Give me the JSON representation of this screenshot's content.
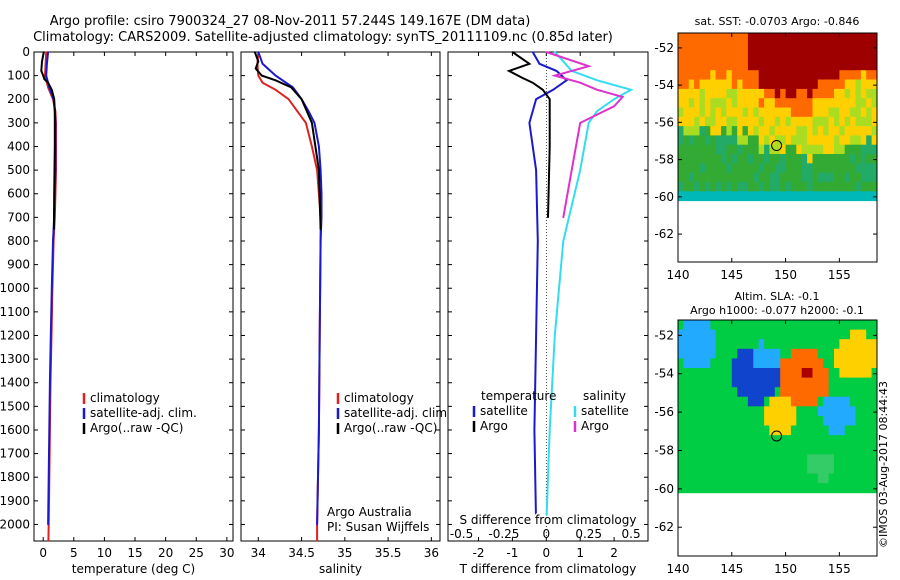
{
  "header": {
    "title": "Argo profile: csiro 7900324_27 08-Nov-2011 57.244S 149.167E (DM data)",
    "subtitle": "Climatology: CARS2009. Satellite-adjusted climatology: synTS_20111109.nc (0.85d later)"
  },
  "colors": {
    "climatology": "#dd2222",
    "satellite": "#1a1acc",
    "argo": "#000000",
    "salinity_satellite": "#33ddee",
    "salinity_argo": "#dd33cc"
  },
  "chart_data": [
    {
      "type": "line",
      "xlabel": "temperature (deg C)",
      "ylabel": "",
      "xlim": [
        -1.5,
        31
      ],
      "ylim": [
        2070,
        0
      ],
      "xticks": [
        0,
        5,
        10,
        15,
        20,
        25,
        30
      ],
      "yticks": [
        0,
        100,
        200,
        300,
        400,
        500,
        600,
        700,
        800,
        900,
        1000,
        1100,
        1200,
        1300,
        1400,
        1500,
        1600,
        1700,
        1800,
        1900,
        2000
      ],
      "legend": [
        "climatology",
        "satellite-adj. clim.",
        "Argo(..raw -QC)"
      ],
      "legend_position": "lower-right",
      "series": [
        {
          "name": "climatology",
          "color": "#dd2222",
          "x": [
            0.5,
            0.4,
            0.3,
            0.8,
            1.6,
            2.0,
            2.1,
            2.1,
            2.1,
            2.0,
            1.9,
            1.7,
            1.5,
            1.35,
            1.2,
            1.1,
            1.0,
            0.95,
            0.9,
            0.85
          ],
          "y": [
            0,
            50,
            100,
            150,
            200,
            250,
            300,
            400,
            500,
            600,
            700,
            800,
            1000,
            1200,
            1400,
            1600,
            1800,
            1900,
            2000,
            2070
          ]
        },
        {
          "name": "satellite-adj. clim.",
          "color": "#1a1acc",
          "x": [
            0.8,
            0.6,
            0.5,
            1.0,
            1.7,
            1.9,
            2.0,
            2.0,
            2.0,
            1.9,
            1.8,
            1.6,
            1.4,
            1.25,
            1.1,
            1.0,
            0.9,
            0.85,
            0.8
          ],
          "y": [
            0,
            50,
            100,
            150,
            200,
            250,
            300,
            400,
            500,
            600,
            700,
            800,
            1000,
            1200,
            1400,
            1600,
            1800,
            1900,
            2000
          ]
        },
        {
          "name": "Argo(..raw -QC)",
          "color": "#000000",
          "x": [
            0.1,
            -0.2,
            -0.3,
            0.0,
            0.2,
            0.8,
            1.4,
            1.8,
            1.9,
            1.9,
            1.9,
            1.8,
            1.75
          ],
          "y": [
            0,
            40,
            80,
            100,
            115,
            130,
            160,
            200,
            250,
            300,
            400,
            600,
            750
          ]
        }
      ]
    },
    {
      "type": "line",
      "xlabel": "salinity",
      "ylabel": "",
      "xlim": [
        33.8,
        36.1
      ],
      "ylim": [
        2070,
        0
      ],
      "xticks": [
        34,
        34.5,
        35,
        35.5,
        36
      ],
      "xtick_labels": [
        "34",
        "34.5",
        "35",
        "35.5",
        "36"
      ],
      "legend": [
        "climatology",
        "satellite-adj. clim.",
        "Argo(..raw -QC)"
      ],
      "legend_position": "lower-right",
      "annotations": [
        "Argo Australia",
        "PI: Susan Wijffels"
      ],
      "series": [
        {
          "name": "climatology",
          "color": "#dd2222",
          "x": [
            34.0,
            33.99,
            34.0,
            34.05,
            34.2,
            34.35,
            34.45,
            34.55,
            34.62,
            34.68,
            34.7,
            34.72,
            34.72,
            34.71,
            34.7,
            34.69,
            34.68,
            34.68
          ],
          "y": [
            0,
            50,
            100,
            130,
            160,
            200,
            250,
            300,
            400,
            500,
            600,
            700,
            800,
            1200,
            1600,
            1800,
            2000,
            2070
          ]
        },
        {
          "name": "satellite-adj. clim.",
          "color": "#1a1acc",
          "x": [
            34.0,
            34.05,
            34.2,
            34.4,
            34.5,
            34.58,
            34.65,
            34.7,
            34.72,
            34.73,
            34.73,
            34.72,
            34.71,
            34.7,
            34.69,
            34.68
          ],
          "y": [
            0,
            50,
            100,
            150,
            200,
            250,
            300,
            400,
            500,
            600,
            700,
            800,
            1200,
            1600,
            1800,
            2000
          ]
        },
        {
          "name": "Argo(..raw -QC)",
          "color": "#000000",
          "x": [
            33.96,
            34.0,
            33.97,
            34.04,
            34.2,
            34.38,
            34.5,
            34.62,
            34.7,
            34.72
          ],
          "y": [
            0,
            40,
            70,
            100,
            120,
            150,
            200,
            300,
            500,
            750
          ]
        }
      ]
    },
    {
      "type": "line",
      "xlabel": "T difference from climatology",
      "x2label": "S difference from climatology",
      "ylabel": "",
      "xlim": [
        -2.9,
        3.0
      ],
      "ylim": [
        2070,
        0
      ],
      "xticks": [
        -2,
        -1,
        0,
        1,
        2
      ],
      "x2ticks": [
        -0.5,
        -0.25,
        0,
        0.25,
        0.5
      ],
      "x2tick_labels": [
        "-0.5",
        "-0.25",
        "0",
        "0.25",
        "0.5"
      ],
      "legend": [
        "satellite",
        "Argo",
        "satellite",
        "Argo"
      ],
      "legend_position": "lower",
      "legend_headers": [
        "temperature",
        "salinity"
      ],
      "series": [
        {
          "name": "satellite",
          "color": "#1a1acc",
          "x": [
            -0.4,
            -0.2,
            0.3,
            0.6,
            0.2,
            -0.3,
            -0.5,
            -0.3,
            -0.25,
            -0.3,
            -0.35,
            -0.3
          ],
          "y": [
            0,
            50,
            80,
            120,
            160,
            200,
            300,
            500,
            800,
            1200,
            1600,
            2000
          ]
        },
        {
          "name": "Argo",
          "color": "#000000",
          "x": [
            -1.0,
            -0.5,
            -1.1,
            -0.7,
            -0.4,
            -0.1,
            0.1,
            0.1,
            0.05
          ],
          "y": [
            0,
            50,
            80,
            110,
            130,
            160,
            200,
            400,
            700
          ]
        },
        {
          "name": "satellite",
          "color": "#33ddee",
          "x": [
            0.05,
            0.1,
            0.15,
            0.3,
            0.5,
            0.4,
            0.3,
            0.25,
            0.2,
            0.1,
            0.05,
            0.02,
            0.0
          ],
          "y": [
            0,
            40,
            80,
            120,
            160,
            200,
            250,
            300,
            500,
            800,
            1200,
            1600,
            2000
          ]
        },
        {
          "name": "Argo",
          "color": "#dd33cc",
          "x": [
            0.0,
            0.25,
            0.05,
            0.2,
            0.3,
            0.45,
            0.4,
            0.2,
            0.15,
            0.1
          ],
          "y": [
            0,
            60,
            100,
            130,
            160,
            190,
            230,
            300,
            500,
            700
          ]
        }
      ]
    },
    {
      "type": "heatmap",
      "title": "sat. SST: -0.0703  Argo: -0.846",
      "xlim": [
        140,
        158.5
      ],
      "ylim": [
        -63.5,
        -51.2
      ],
      "xticks": [
        140,
        145,
        150,
        155
      ],
      "yticks": [
        -52,
        -54,
        -56,
        -58,
        -60,
        -62
      ],
      "marker": {
        "lon": 149.167,
        "lat": -57.244
      },
      "colors": [
        "#9e0000",
        "#ff6a00",
        "#ffd000",
        "#aadd22",
        "#33aa33",
        "#22aa66",
        "#00b8b8"
      ]
    },
    {
      "type": "heatmap",
      "title": "Altim. SLA: -0.1",
      "subtitle": "Argo h1000: -0.077 h2000: -0.1",
      "xlim": [
        140,
        158.5
      ],
      "ylim": [
        -63.5,
        -51.2
      ],
      "xticks": [
        140,
        145,
        150,
        155
      ],
      "yticks": [
        -52,
        -54,
        -56,
        -58,
        -60,
        -62
      ],
      "marker": {
        "lon": 149.167,
        "lat": -57.244
      },
      "colors": [
        "#00cc44",
        "#33cc66",
        "#22aaff",
        "#1144cc",
        "#ffd000",
        "#ff6a00",
        "#aa0000"
      ]
    }
  ],
  "credit": "©IMOS 03-Aug-2017 08:44:43"
}
